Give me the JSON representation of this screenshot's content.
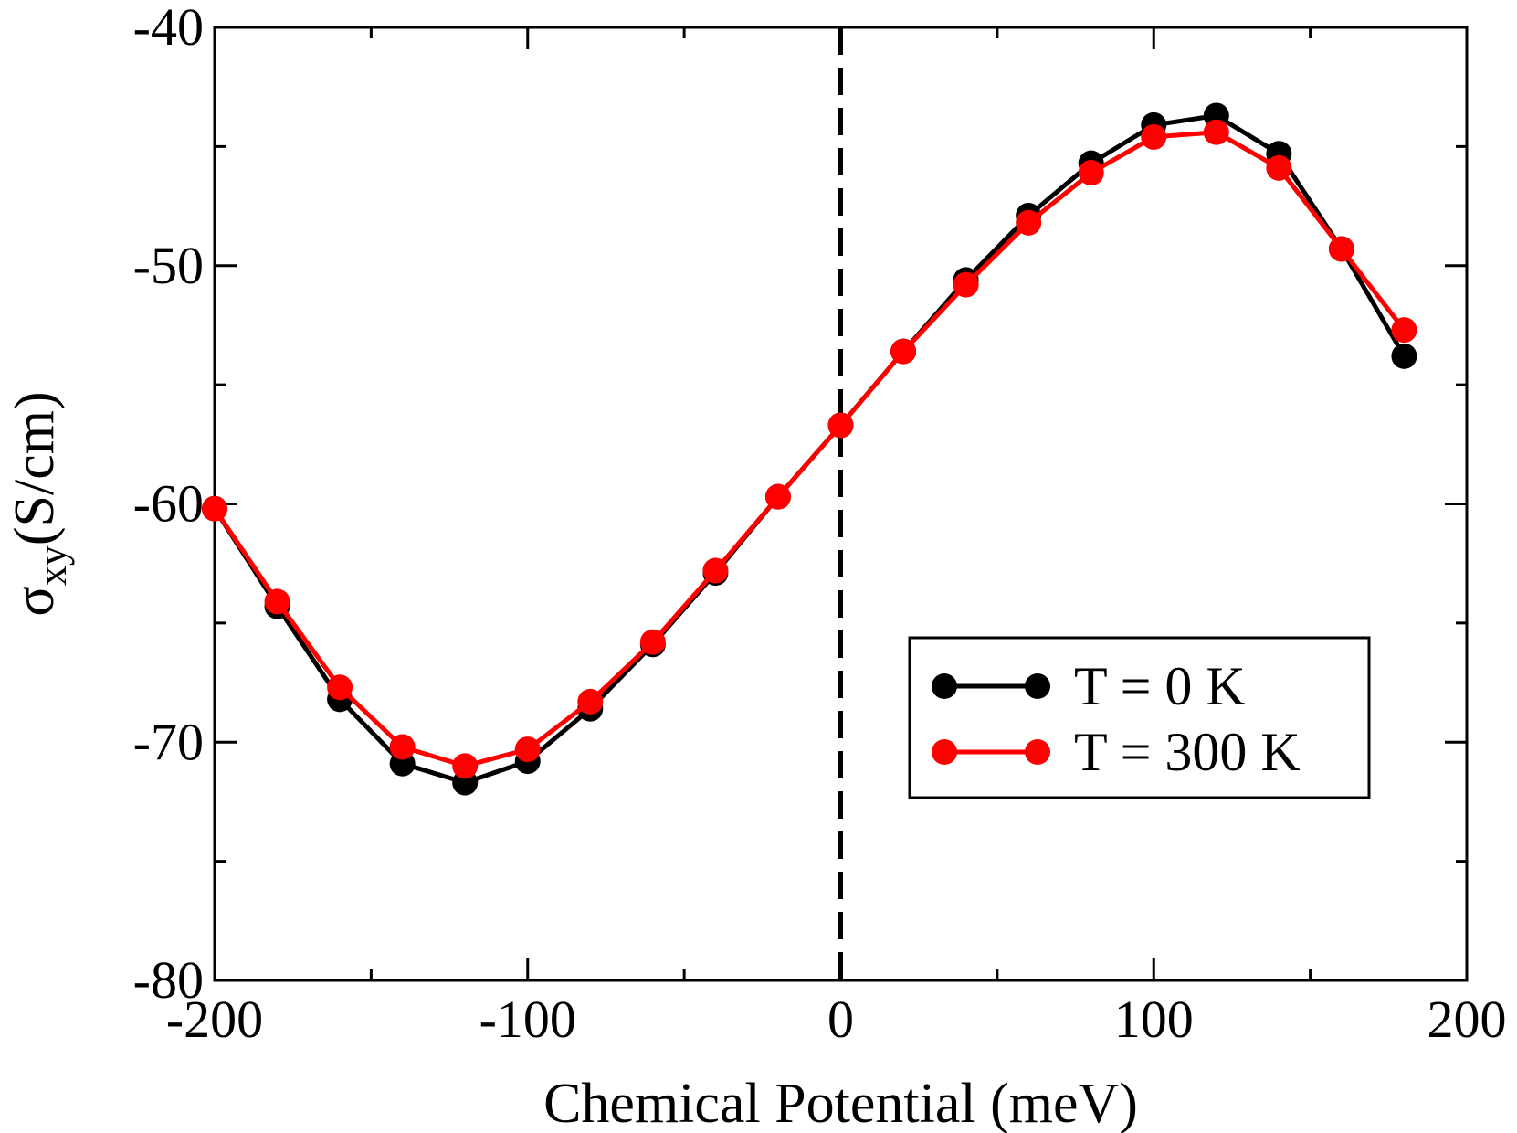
{
  "chart_data": {
    "type": "line",
    "title": "",
    "xlabel": "Chemical Potential (meV)",
    "ylabel_symbol": "σ",
    "ylabel_sub": "xy",
    "ylabel_unit": "(S/cm)",
    "xlim": [
      -200,
      200
    ],
    "ylim": [
      -80,
      -40
    ],
    "xticks": [
      -200,
      -100,
      0,
      100,
      200
    ],
    "xtick_labels": [
      "-200",
      "-100",
      "0",
      "100",
      "200"
    ],
    "yticks": [
      -80,
      -70,
      -60,
      -50,
      -40
    ],
    "ytick_labels": [
      "-80",
      "-70",
      "-60",
      "-50",
      "-40"
    ],
    "x_minor_step": 50,
    "y_minor_step": 5,
    "vline_x": 0,
    "legend_position": "lower-right",
    "x": [
      -200,
      -180,
      -160,
      -140,
      -120,
      -100,
      -80,
      -60,
      -40,
      -20,
      0,
      20,
      40,
      60,
      80,
      100,
      120,
      140,
      160,
      180
    ],
    "series": [
      {
        "name": "T = 0 K",
        "color": "#000000",
        "values": [
          -60.2,
          -64.3,
          -68.2,
          -70.9,
          -71.7,
          -70.8,
          -68.6,
          -65.9,
          -62.9,
          -59.7,
          -56.7,
          -53.6,
          -50.6,
          -47.9,
          -45.7,
          -44.1,
          -43.7,
          -45.3,
          -49.3,
          -53.8
        ]
      },
      {
        "name": "T = 300 K",
        "color": "#ff0000",
        "values": [
          -60.2,
          -64.1,
          -67.7,
          -70.2,
          -71.0,
          -70.3,
          -68.3,
          -65.8,
          -62.8,
          -59.7,
          -56.7,
          -53.6,
          -50.8,
          -48.2,
          -46.1,
          -44.6,
          -44.4,
          -45.9,
          -49.3,
          -52.7
        ]
      }
    ]
  }
}
